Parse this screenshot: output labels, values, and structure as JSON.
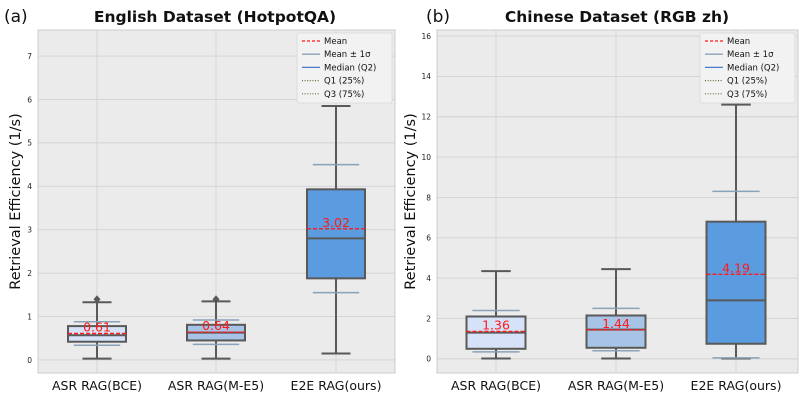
{
  "chart_data": [
    {
      "type": "box",
      "panel_label": "(a)",
      "title": "English Dataset (HotpotQA)",
      "ylabel": "Retrieval Efficiency (1/s)",
      "ylim": [
        -0.3,
        7.6
      ],
      "yticks": [
        0,
        1,
        2,
        3,
        4,
        5,
        6,
        7
      ],
      "grid": true,
      "legend_position": "top-right",
      "categories": [
        "ASR RAG(BCE)",
        "ASR RAG(M-E5)",
        "E2E RAG(ours)"
      ],
      "mean_labels": [
        "0.61",
        "0.64",
        "3.02"
      ],
      "boxes": [
        {
          "whisker_low": 0.03,
          "q1": 0.42,
          "median": 0.57,
          "q3": 0.78,
          "whisker_high": 1.33,
          "outliers": [
            1.4
          ],
          "mean": 0.61,
          "mean_minus_sd": 0.34,
          "mean_plus_sd": 0.88
        },
        {
          "whisker_low": 0.03,
          "q1": 0.45,
          "median": 0.63,
          "q3": 0.81,
          "whisker_high": 1.35,
          "outliers": [
            1.4
          ],
          "mean": 0.64,
          "mean_minus_sd": 0.36,
          "mean_plus_sd": 0.92
        },
        {
          "whisker_low": 0.15,
          "q1": 1.88,
          "median": 2.8,
          "q3": 3.93,
          "whisker_high": 5.85,
          "outliers": [],
          "mean": 3.02,
          "mean_minus_sd": 1.55,
          "mean_plus_sd": 4.5
        }
      ]
    },
    {
      "type": "box",
      "panel_label": "(b)",
      "title": "Chinese Dataset (RGB zh)",
      "ylabel": "Retrieval Efficiency (1/s)",
      "ylim": [
        -0.7,
        16.3
      ],
      "yticks": [
        0,
        2,
        4,
        6,
        8,
        10,
        12,
        14,
        16
      ],
      "grid": true,
      "legend_position": "top-right",
      "categories": [
        "ASR RAG(BCE)",
        "ASR RAG(M-E5)",
        "E2E RAG(ours)"
      ],
      "mean_labels": [
        "1.36",
        "1.44",
        "4.19"
      ],
      "boxes": [
        {
          "whisker_low": 0.02,
          "q1": 0.5,
          "median": 1.3,
          "q3": 2.1,
          "whisker_high": 4.35,
          "outliers": [],
          "mean": 1.36,
          "mean_minus_sd": 0.35,
          "mean_plus_sd": 2.4
        },
        {
          "whisker_low": 0.02,
          "q1": 0.55,
          "median": 1.45,
          "q3": 2.15,
          "whisker_high": 4.45,
          "outliers": [],
          "mean": 1.44,
          "mean_minus_sd": 0.4,
          "mean_plus_sd": 2.5
        },
        {
          "whisker_low": 0.02,
          "q1": 0.75,
          "median": 2.9,
          "q3": 6.8,
          "whisker_high": 12.6,
          "outliers": [],
          "mean": 4.19,
          "mean_minus_sd": 0.05,
          "mean_plus_sd": 8.3
        }
      ]
    }
  ],
  "legend": {
    "entries": [
      {
        "key": "mean",
        "label": "Mean"
      },
      {
        "key": "mean_sd",
        "label": "Mean ± 1σ"
      },
      {
        "key": "median",
        "label": "Median (Q2)"
      },
      {
        "key": "q1",
        "label": "Q1 (25%)"
      },
      {
        "key": "q3",
        "label": "Q3 (75%)"
      }
    ]
  },
  "colors": {
    "plot_bg": "#ebebeb",
    "grid": "#ffffff",
    "box_fills": [
      "#d6e2f7",
      "#a7c3e6",
      "#5b9bdf"
    ],
    "box_edge": "#595959",
    "mean_line": "#ff1a1a",
    "sd_line": "#8aa1ba",
    "median_legend": "#4a7bc8",
    "quartile_legend": "#6b6b3a"
  }
}
